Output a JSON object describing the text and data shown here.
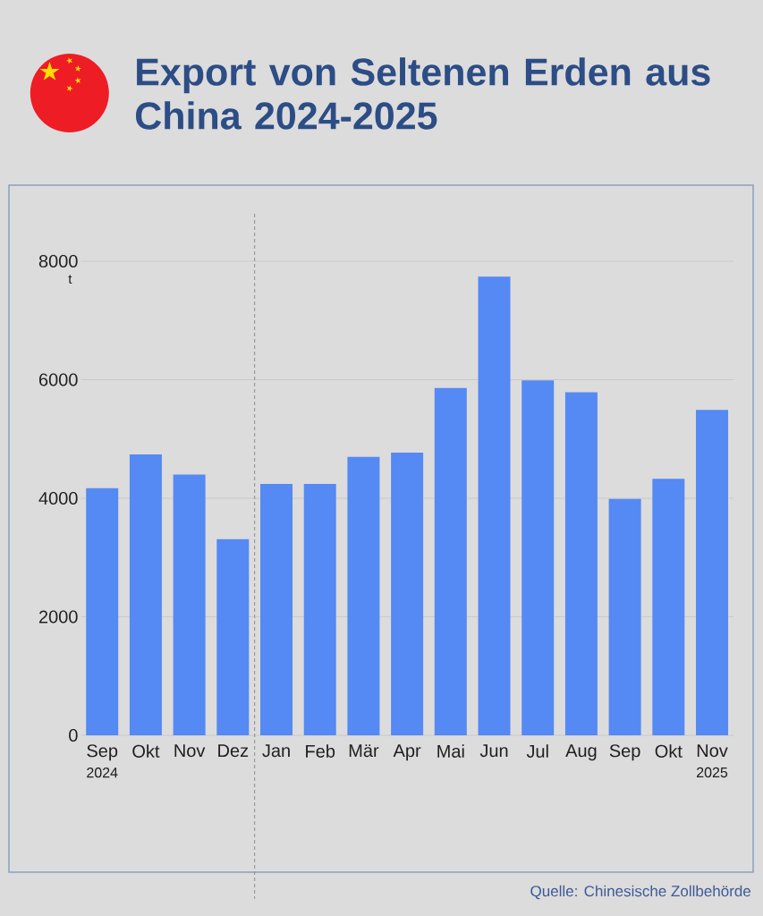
{
  "chart_data": {
    "type": "bar",
    "title": "Export von Seltenen Erden aus China 2024-2025",
    "ylabel": "t",
    "x": [
      "2024-09",
      "2024-10",
      "2024-11",
      "2024-12",
      "2025-01",
      "2025-02",
      "2025-03",
      "2025-04",
      "2025-05",
      "2025-06",
      "2025-07",
      "2025-08",
      "2025-09",
      "2025-10",
      "2025-11"
    ],
    "values": [
      4170,
      4740,
      4400,
      3310,
      4240,
      4240,
      4700,
      4770,
      5860,
      7740,
      5990,
      5790,
      3990,
      4330,
      5490
    ],
    "color": "#5589f4",
    "xlim": [
      "2024-08-17",
      "2025-11-16"
    ],
    "xticks": [
      {
        "value": "2024-09",
        "label": "Sep\n2024"
      },
      {
        "value": "2024-10",
        "label": "Okt"
      },
      {
        "value": "2024-11",
        "label": "Nov"
      },
      {
        "value": "2024-12",
        "label": "Dez"
      },
      {
        "value": "2025-01",
        "label": "Jan"
      },
      {
        "value": "2025-02",
        "label": "Feb"
      },
      {
        "value": "2025-03",
        "label": "Mär"
      },
      {
        "value": "2025-04",
        "label": "Apr"
      },
      {
        "value": "2025-05",
        "label": "Mai"
      },
      {
        "value": "2025-06",
        "label": "Jun"
      },
      {
        "value": "2025-07",
        "label": "Jul"
      },
      {
        "value": "2025-08",
        "label": "Aug"
      },
      {
        "value": "2025-09",
        "label": "Sep"
      },
      {
        "value": "2025-10",
        "label": "Okt"
      },
      {
        "value": "2025-11",
        "label": "Nov\n2025"
      }
    ],
    "ylim": [
      0,
      8000
    ],
    "yticks": [
      0,
      2000,
      4000,
      6000,
      8000
    ],
    "grid": "y",
    "ref_lines": [
      {
        "axis": "x",
        "value": "2024-12-16T12:00",
        "line_style": "dashed",
        "color": "#8c8c8c"
      }
    ],
    "annotations": [
      "Quelle: Chinesische Zollbehörde"
    ]
  }
}
